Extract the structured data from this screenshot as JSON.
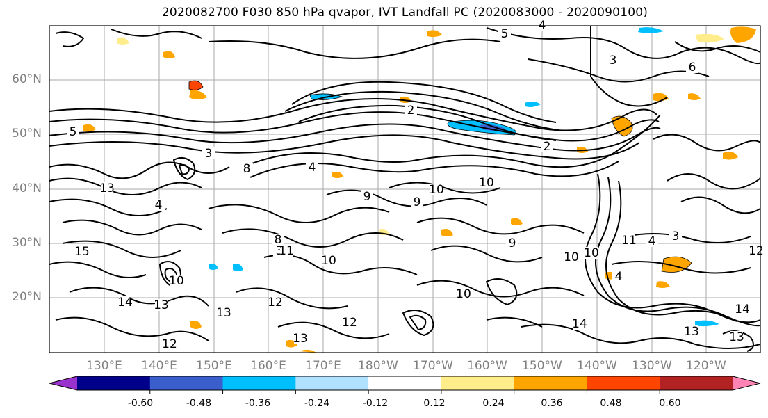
{
  "title": "2020082700 F030 850 hPa qvapor, IVT Landfall PC (2020083000 - 2020090100)",
  "lat_labels": [
    "60°N",
    "50°N",
    "40°N",
    "30°N",
    "20°N"
  ],
  "lon_labels": [
    "130°E",
    "140°E",
    "150°E",
    "160°E",
    "170°E",
    "180°W",
    "170°W",
    "160°W",
    "150°W",
    "140°W",
    "130°W",
    "120°W"
  ],
  "colorbar": {
    "colors": [
      "#9a32cd",
      "#00008b",
      "#3a5fcd",
      "#00bfff",
      "#b0e2ff",
      "#ffffff",
      "#ffec8b",
      "#ffa500",
      "#ff4500",
      "#b22222",
      "#ff83b4"
    ],
    "tick_labels": [
      "-0.60",
      "-0.48",
      "-0.36",
      "-0.24",
      "-0.12",
      "0.12",
      "0.24",
      "0.36",
      "0.48",
      "0.60"
    ]
  },
  "contour_labels": [
    "5",
    "4",
    "3",
    "2",
    "2",
    "5",
    "4",
    "3",
    "4",
    "3",
    "13",
    "15",
    "13",
    "14",
    "13",
    "12",
    "12",
    "10",
    "11",
    "13",
    "12",
    "10",
    "10",
    "9",
    "10",
    "10",
    "14",
    "14",
    "13",
    "13",
    "9",
    "10",
    "10",
    "11",
    "4",
    "4",
    "3",
    "9",
    "6",
    "8",
    "12",
    "8"
  ]
}
